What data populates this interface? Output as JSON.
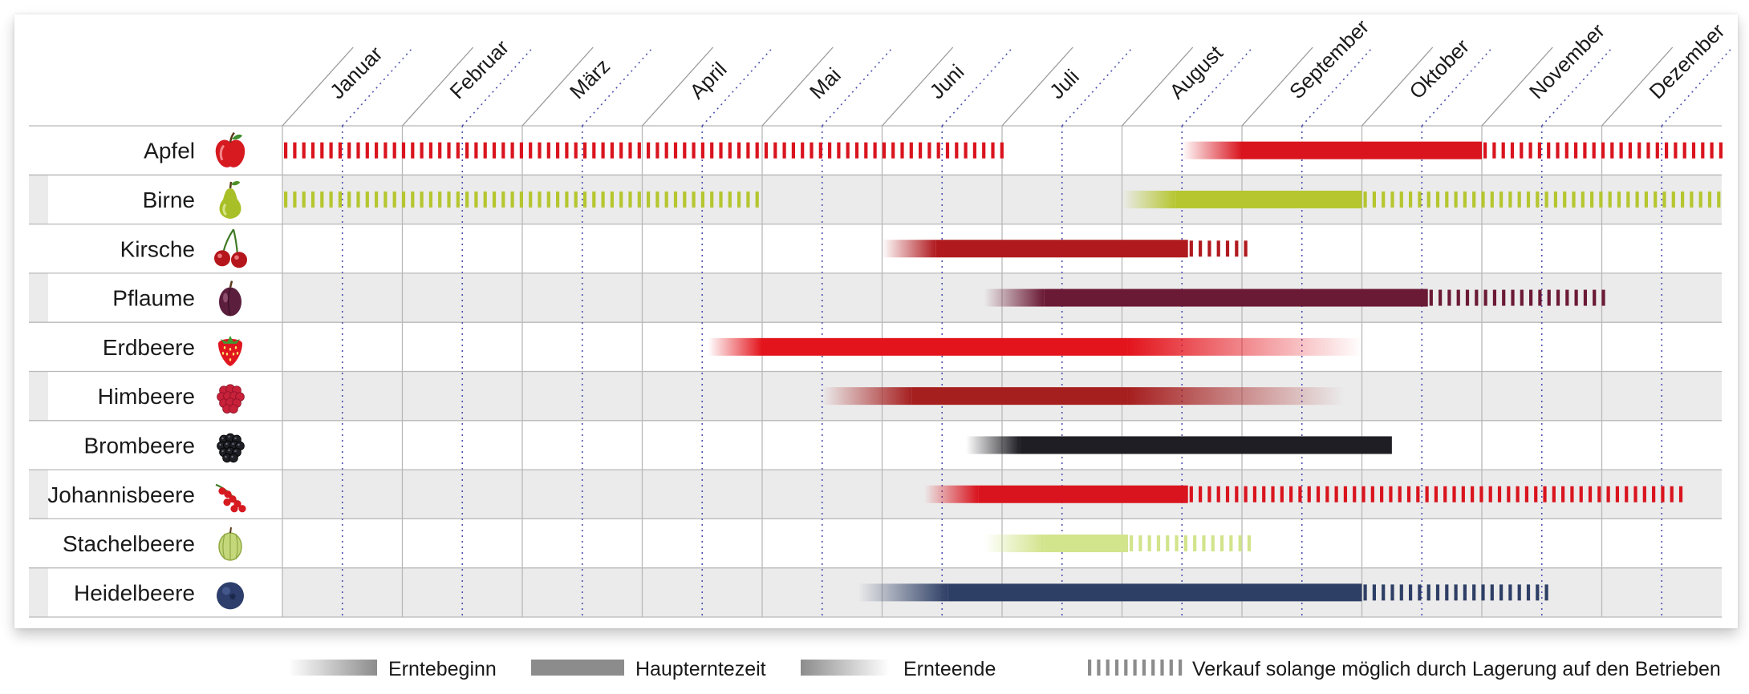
{
  "chart_data": {
    "type": "gantt",
    "months": [
      "Januar",
      "Februar",
      "März",
      "April",
      "Mai",
      "Juni",
      "Juli",
      "August",
      "September",
      "Oktober",
      "November",
      "Dezember"
    ],
    "x_unit": "Monat (1 = Anfang Januar, 13 = Ende Dezember)",
    "rows": [
      {
        "name": "Apfel",
        "icon": "apple-icon",
        "color": "#D9141E",
        "segments": [
          {
            "kind": "verkauf",
            "start": 1.0,
            "end": 7.0
          },
          {
            "kind": "erntebeginn",
            "start": 8.5,
            "end": 9.0
          },
          {
            "kind": "haupterntezeit",
            "start": 9.0,
            "end": 11.0
          },
          {
            "kind": "verkauf",
            "start": 11.0,
            "end": 13.0
          }
        ]
      },
      {
        "name": "Birne",
        "icon": "pear-icon",
        "color": "#B5C62F",
        "segments": [
          {
            "kind": "verkauf",
            "start": 1.0,
            "end": 5.0
          },
          {
            "kind": "erntebeginn",
            "start": 8.0,
            "end": 8.45
          },
          {
            "kind": "haupterntezeit",
            "start": 8.45,
            "end": 10.0
          },
          {
            "kind": "verkauf",
            "start": 10.0,
            "end": 13.0
          }
        ]
      },
      {
        "name": "Kirsche",
        "icon": "cherry-icon",
        "color": "#B01A1F",
        "segments": [
          {
            "kind": "erntebeginn",
            "start": 6.0,
            "end": 6.45
          },
          {
            "kind": "haupterntezeit",
            "start": 6.45,
            "end": 8.55
          },
          {
            "kind": "verkauf",
            "start": 8.55,
            "end": 9.05
          }
        ]
      },
      {
        "name": "Pflaume",
        "icon": "plum-icon",
        "color": "#6B1A36",
        "segments": [
          {
            "kind": "erntebeginn",
            "start": 6.85,
            "end": 7.35
          },
          {
            "kind": "haupterntezeit",
            "start": 7.35,
            "end": 10.55
          },
          {
            "kind": "verkauf",
            "start": 10.55,
            "end": 12.0
          }
        ]
      },
      {
        "name": "Erdbeere",
        "icon": "strawberry-icon",
        "color": "#E3141C",
        "segments": [
          {
            "kind": "erntebeginn",
            "start": 4.55,
            "end": 5.0
          },
          {
            "kind": "haupterntezeit",
            "start": 5.0,
            "end": 8.05
          },
          {
            "kind": "ernteende",
            "start": 8.05,
            "end": 10.0
          }
        ]
      },
      {
        "name": "Himbeere",
        "icon": "raspberry-icon",
        "color": "#A61F1F",
        "segments": [
          {
            "kind": "erntebeginn",
            "start": 5.5,
            "end": 6.25
          },
          {
            "kind": "haupterntezeit",
            "start": 6.25,
            "end": 8.05
          },
          {
            "kind": "ernteende",
            "start": 8.05,
            "end": 9.85
          }
        ]
      },
      {
        "name": "Brombeere",
        "icon": "blackberry-icon",
        "color": "#1E1E24",
        "segments": [
          {
            "kind": "erntebeginn",
            "start": 6.7,
            "end": 7.15
          },
          {
            "kind": "haupterntezeit",
            "start": 7.15,
            "end": 10.25
          }
        ]
      },
      {
        "name": "Johannisbeere",
        "icon": "currant-icon",
        "color": "#D9141E",
        "segments": [
          {
            "kind": "erntebeginn",
            "start": 6.35,
            "end": 6.8
          },
          {
            "kind": "haupterntezeit",
            "start": 6.8,
            "end": 8.55
          },
          {
            "kind": "verkauf",
            "start": 8.55,
            "end": 12.65
          }
        ]
      },
      {
        "name": "Stachelbeere",
        "icon": "gooseberry-icon",
        "color": "#D2E48C",
        "segments": [
          {
            "kind": "erntebeginn",
            "start": 6.85,
            "end": 7.35
          },
          {
            "kind": "haupterntezeit",
            "start": 7.35,
            "end": 8.05
          },
          {
            "kind": "verkauf",
            "start": 8.05,
            "end": 9.05
          }
        ]
      },
      {
        "name": "Heidelbeere",
        "icon": "blueberry-icon",
        "color": "#2E3F66",
        "segments": [
          {
            "kind": "erntebeginn",
            "start": 5.8,
            "end": 6.55
          },
          {
            "kind": "haupterntezeit",
            "start": 6.55,
            "end": 10.0
          },
          {
            "kind": "verkauf",
            "start": 10.0,
            "end": 11.55
          }
        ]
      }
    ],
    "legend": [
      {
        "kind": "erntebeginn",
        "label": "Erntebeginn"
      },
      {
        "kind": "haupterntezeit",
        "label": "Haupterntezeit"
      },
      {
        "kind": "ernteende",
        "label": "Ernteende"
      },
      {
        "kind": "verkauf",
        "label": "Verkauf solange möglich durch Lagerung auf den Betrieben"
      }
    ],
    "legend_color": "#8C8C8C",
    "grid_color": "#B8B8B8",
    "midmonth_line_color": "#4B4FB0",
    "alt_row_color": "#EBEBEB"
  }
}
